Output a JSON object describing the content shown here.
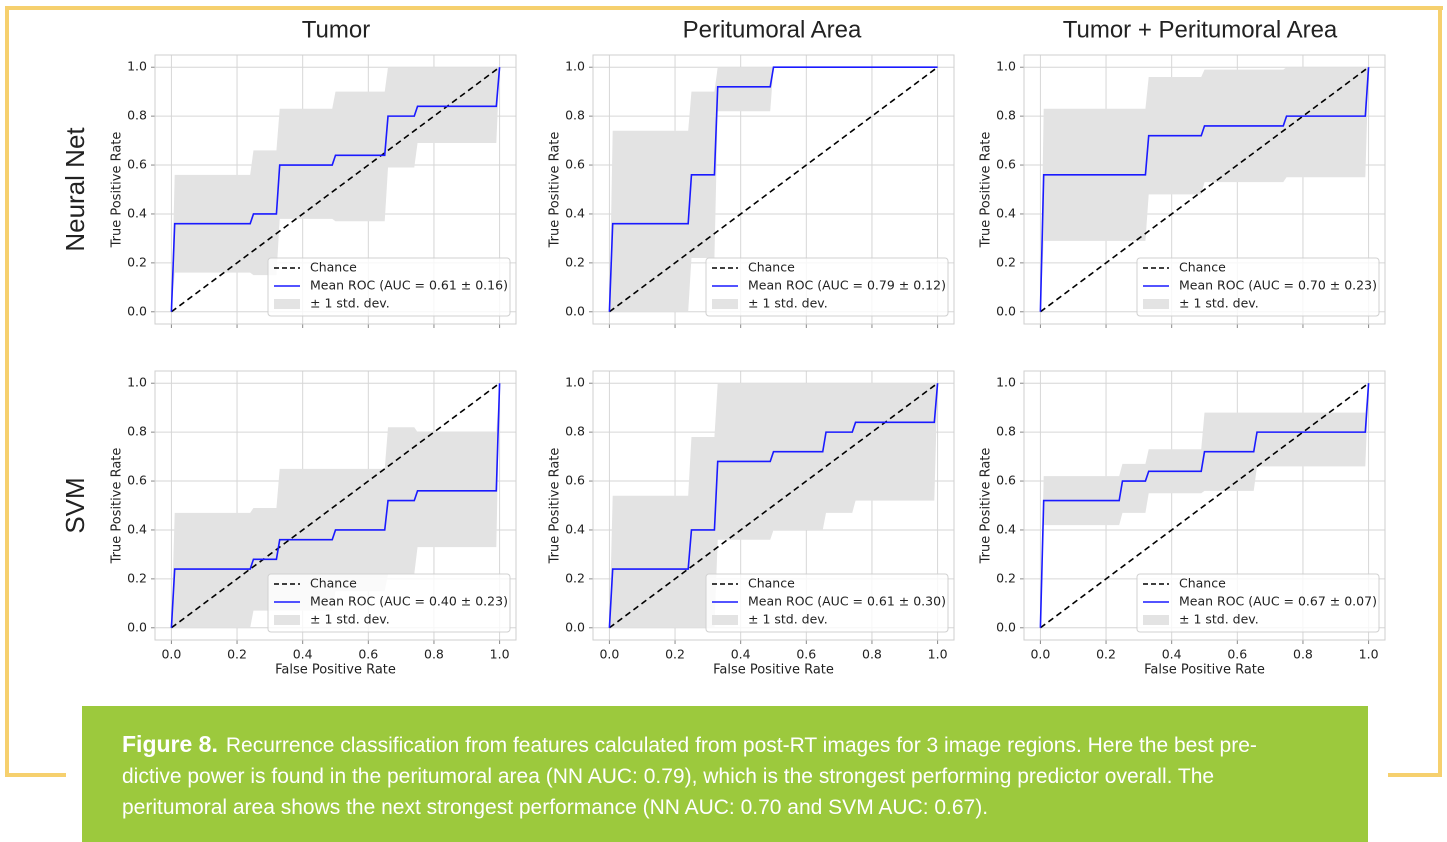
{
  "column_titles": [
    "Tumor",
    "Peritumoral Area",
    "Tumor + Peritumoral Area"
  ],
  "row_labels": [
    "Neural Net",
    "SVM"
  ],
  "caption": {
    "label": "Figure 8.",
    "lines": [
      "Recurrence classification from features calculated from post-RT images for 3 image regions.  Here the best pre-",
      "dictive power is found in the peritumoral area (NN AUC: 0.79), which is the strongest performing predictor overall. The",
      "peritumoral area shows the next strongest performance (NN AUC: 0.70 and SVM AUC: 0.67)."
    ]
  },
  "chart_data": [
    {
      "type": "line",
      "ylabel": "True Positive Rate",
      "xlim": [
        -0.05,
        1.05
      ],
      "ylim": [
        -0.05,
        1.05
      ],
      "xticks": [
        0,
        0.2,
        0.4,
        0.6,
        0.8,
        1
      ],
      "show_xtick_labels": false,
      "yticks": [
        {
          "value": 0,
          "label": "0.0"
        },
        0.2,
        0.4,
        0.6,
        0.8,
        {
          "value": 1,
          "label": "1.0"
        }
      ],
      "grid": true,
      "legend": "lower right",
      "series": [
        {
          "name": "Chance",
          "color": "#000000",
          "linestyle": "dashed",
          "x": [
            0,
            1
          ],
          "values": [
            0,
            1
          ]
        },
        {
          "name": "Mean ROC (AUC = 0.61 ± 0.16)",
          "color": "#1a1aff",
          "x": [
            0,
            0.01,
            0.24,
            0.25,
            0.32,
            0.33,
            0.49,
            0.5,
            0.65,
            0.66,
            0.74,
            0.75,
            0.99,
            1
          ],
          "values": [
            0,
            0.36,
            0.36,
            0.4,
            0.4,
            0.6,
            0.6,
            0.64,
            0.64,
            0.8,
            0.8,
            0.84,
            0.84,
            1
          ]
        },
        {
          "name": "± 1 std. dev.",
          "color": "#e3e3e3",
          "x": [
            0,
            0.01,
            0.24,
            0.25,
            0.32,
            0.33,
            0.49,
            0.5,
            0.65,
            0.66,
            0.74,
            0.75,
            0.99,
            1
          ],
          "upper": [
            0,
            0.56,
            0.56,
            0.66,
            0.66,
            0.83,
            0.83,
            0.9,
            0.9,
            1,
            1,
            1,
            1,
            1
          ],
          "lower": [
            0,
            0.16,
            0.16,
            0.15,
            0.15,
            0.38,
            0.38,
            0.37,
            0.37,
            0.59,
            0.59,
            0.69,
            0.69,
            1
          ]
        }
      ]
    },
    {
      "type": "line",
      "ylabel": "True Positive Rate",
      "xlim": [
        -0.05,
        1.05
      ],
      "ylim": [
        -0.05,
        1.05
      ],
      "xticks": [
        0,
        0.2,
        0.4,
        0.6,
        0.8,
        1
      ],
      "show_xtick_labels": false,
      "yticks": [
        {
          "value": 0,
          "label": "0.0"
        },
        0.2,
        0.4,
        0.6,
        0.8,
        {
          "value": 1,
          "label": "1.0"
        }
      ],
      "grid": true,
      "legend": "lower right",
      "series": [
        {
          "name": "Chance",
          "color": "#000000",
          "linestyle": "dashed",
          "x": [
            0,
            1
          ],
          "values": [
            0,
            1
          ]
        },
        {
          "name": "Mean ROC (AUC = 0.79 ± 0.12)",
          "color": "#1a1aff",
          "x": [
            0,
            0.01,
            0.24,
            0.25,
            0.32,
            0.33,
            0.49,
            0.5,
            1
          ],
          "values": [
            0,
            0.36,
            0.36,
            0.56,
            0.56,
            0.92,
            0.92,
            1,
            1
          ]
        },
        {
          "name": "± 1 std. dev.",
          "color": "#e3e3e3",
          "x": [
            0,
            0.01,
            0.24,
            0.25,
            0.32,
            0.33,
            0.49,
            0.5,
            1
          ],
          "upper": [
            0,
            0.74,
            0.74,
            0.9,
            0.9,
            1,
            1,
            1,
            1
          ],
          "lower": [
            0,
            0,
            0,
            0.22,
            0.22,
            0.82,
            0.82,
            1,
            1
          ]
        }
      ]
    },
    {
      "type": "line",
      "ylabel": "True Positive Rate",
      "xlim": [
        -0.05,
        1.05
      ],
      "ylim": [
        -0.05,
        1.05
      ],
      "xticks": [
        0,
        0.2,
        0.4,
        0.6,
        0.8,
        1
      ],
      "show_xtick_labels": false,
      "yticks": [
        {
          "value": 0,
          "label": "0.0"
        },
        0.2,
        0.4,
        0.6,
        0.8,
        {
          "value": 1,
          "label": "1.0"
        }
      ],
      "grid": true,
      "legend": "lower right",
      "series": [
        {
          "name": "Chance",
          "color": "#000000",
          "linestyle": "dashed",
          "x": [
            0,
            1
          ],
          "values": [
            0,
            1
          ]
        },
        {
          "name": "Mean ROC (AUC = 0.70 ± 0.23)",
          "color": "#1a1aff",
          "x": [
            0,
            0.01,
            0.32,
            0.33,
            0.49,
            0.5,
            0.74,
            0.75,
            0.99,
            1
          ],
          "values": [
            0,
            0.56,
            0.56,
            0.72,
            0.72,
            0.76,
            0.76,
            0.8,
            0.8,
            1
          ]
        },
        {
          "name": "± 1 std. dev.",
          "color": "#e3e3e3",
          "x": [
            0,
            0.01,
            0.32,
            0.33,
            0.49,
            0.5,
            0.74,
            0.75,
            0.99,
            1
          ],
          "upper": [
            0,
            0.83,
            0.83,
            0.96,
            0.96,
            0.99,
            0.99,
            1,
            1,
            1
          ],
          "lower": [
            0,
            0.29,
            0.29,
            0.48,
            0.48,
            0.53,
            0.53,
            0.55,
            0.55,
            1
          ]
        }
      ]
    },
    {
      "type": "line",
      "xlabel": "False Positive Rate",
      "ylabel": "True Positive Rate",
      "xlim": [
        -0.05,
        1.05
      ],
      "ylim": [
        -0.05,
        1.05
      ],
      "xticks": [
        {
          "value": 0,
          "label": "0.0"
        },
        0.2,
        0.4,
        0.6,
        0.8,
        {
          "value": 1,
          "label": "1.0"
        }
      ],
      "show_xtick_labels": true,
      "yticks": [
        {
          "value": 0,
          "label": "0.0"
        },
        0.2,
        0.4,
        0.6,
        0.8,
        {
          "value": 1,
          "label": "1.0"
        }
      ],
      "grid": true,
      "legend": "lower right",
      "series": [
        {
          "name": "Chance",
          "color": "#000000",
          "linestyle": "dashed",
          "x": [
            0,
            1
          ],
          "values": [
            0,
            1
          ]
        },
        {
          "name": "Mean ROC (AUC = 0.40 ± 0.23)",
          "color": "#1a1aff",
          "x": [
            0,
            0.01,
            0.24,
            0.25,
            0.32,
            0.33,
            0.49,
            0.5,
            0.65,
            0.66,
            0.74,
            0.75,
            0.99,
            1
          ],
          "values": [
            0,
            0.24,
            0.24,
            0.28,
            0.28,
            0.36,
            0.36,
            0.4,
            0.4,
            0.52,
            0.52,
            0.56,
            0.56,
            1
          ]
        },
        {
          "name": "± 1 std. dev.",
          "color": "#e3e3e3",
          "x": [
            0,
            0.01,
            0.24,
            0.25,
            0.32,
            0.33,
            0.49,
            0.5,
            0.65,
            0.66,
            0.74,
            0.75,
            0.99,
            1
          ],
          "upper": [
            0,
            0.47,
            0.47,
            0.49,
            0.49,
            0.65,
            0.65,
            0.65,
            0.65,
            0.82,
            0.82,
            0.8,
            0.8,
            1
          ],
          "lower": [
            0,
            0,
            0,
            0.07,
            0.07,
            0.07,
            0.07,
            0.15,
            0.15,
            0.22,
            0.22,
            0.33,
            0.33,
            1
          ]
        }
      ]
    },
    {
      "type": "line",
      "xlabel": "False Positive Rate",
      "ylabel": "True Positive Rate",
      "xlim": [
        -0.05,
        1.05
      ],
      "ylim": [
        -0.05,
        1.05
      ],
      "xticks": [
        {
          "value": 0,
          "label": "0.0"
        },
        0.2,
        0.4,
        0.6,
        0.8,
        {
          "value": 1,
          "label": "1.0"
        }
      ],
      "show_xtick_labels": true,
      "yticks": [
        {
          "value": 0,
          "label": "0.0"
        },
        0.2,
        0.4,
        0.6,
        0.8,
        {
          "value": 1,
          "label": "1.0"
        }
      ],
      "grid": true,
      "legend": "lower right",
      "series": [
        {
          "name": "Chance",
          "color": "#000000",
          "linestyle": "dashed",
          "x": [
            0,
            1
          ],
          "values": [
            0,
            1
          ]
        },
        {
          "name": "Mean ROC (AUC = 0.61 ± 0.30)",
          "color": "#1a1aff",
          "x": [
            0,
            0.01,
            0.24,
            0.25,
            0.32,
            0.33,
            0.49,
            0.5,
            0.65,
            0.66,
            0.74,
            0.75,
            0.99,
            1
          ],
          "values": [
            0,
            0.24,
            0.24,
            0.4,
            0.4,
            0.68,
            0.68,
            0.72,
            0.72,
            0.8,
            0.8,
            0.84,
            0.84,
            1
          ]
        },
        {
          "name": "± 1 std. dev.",
          "color": "#e3e3e3",
          "x": [
            0,
            0.01,
            0.24,
            0.25,
            0.32,
            0.33,
            0.49,
            0.5,
            0.65,
            0.66,
            0.74,
            0.75,
            0.99,
            1
          ],
          "upper": [
            0,
            0.54,
            0.54,
            0.78,
            0.78,
            1,
            1,
            1,
            1,
            1,
            1,
            1,
            1,
            1
          ],
          "lower": [
            0,
            0,
            0,
            0,
            0,
            0.36,
            0.36,
            0.4,
            0.4,
            0.47,
            0.47,
            0.52,
            0.52,
            1
          ]
        }
      ]
    },
    {
      "type": "line",
      "xlabel": "False Positive Rate",
      "ylabel": "True Positive Rate",
      "xlim": [
        -0.05,
        1.05
      ],
      "ylim": [
        -0.05,
        1.05
      ],
      "xticks": [
        {
          "value": 0,
          "label": "0.0"
        },
        0.2,
        0.4,
        0.6,
        0.8,
        {
          "value": 1,
          "label": "1.0"
        }
      ],
      "show_xtick_labels": true,
      "yticks": [
        {
          "value": 0,
          "label": "0.0"
        },
        0.2,
        0.4,
        0.6,
        0.8,
        {
          "value": 1,
          "label": "1.0"
        }
      ],
      "grid": true,
      "legend": "lower right",
      "series": [
        {
          "name": "Chance",
          "color": "#000000",
          "linestyle": "dashed",
          "x": [
            0,
            1
          ],
          "values": [
            0,
            1
          ]
        },
        {
          "name": "Mean ROC (AUC = 0.67 ± 0.07)",
          "color": "#1a1aff",
          "x": [
            0,
            0.01,
            0.24,
            0.25,
            0.32,
            0.33,
            0.49,
            0.5,
            0.65,
            0.66,
            0.99,
            1
          ],
          "values": [
            0,
            0.52,
            0.52,
            0.6,
            0.6,
            0.64,
            0.64,
            0.72,
            0.72,
            0.8,
            0.8,
            1
          ]
        },
        {
          "name": "± 1 std. dev.",
          "color": "#e3e3e3",
          "x": [
            0,
            0.01,
            0.24,
            0.25,
            0.32,
            0.33,
            0.49,
            0.5,
            0.65,
            0.66,
            0.99,
            1
          ],
          "upper": [
            0,
            0.62,
            0.62,
            0.67,
            0.67,
            0.73,
            0.73,
            0.88,
            0.88,
            0.88,
            0.88,
            1
          ],
          "lower": [
            0,
            0.42,
            0.42,
            0.47,
            0.47,
            0.55,
            0.55,
            0.56,
            0.56,
            0.66,
            0.66,
            1
          ]
        }
      ]
    }
  ]
}
